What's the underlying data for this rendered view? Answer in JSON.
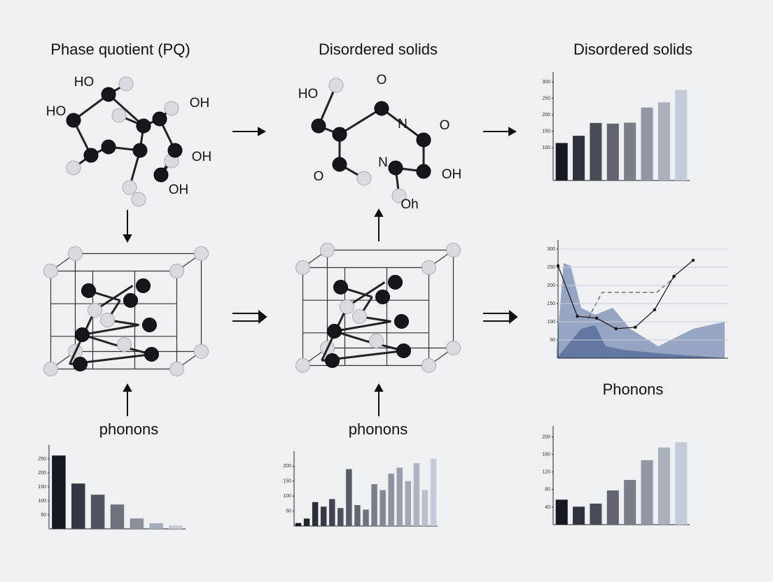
{
  "titles": [
    "Phase quotient (PQ)",
    "Disordered solids",
    "Disordered solids",
    "phonons",
    "phonons",
    "Phonons"
  ],
  "molecule_1_labels": [
    "HO",
    "HO",
    "OH",
    "OH",
    "OH"
  ],
  "molecule_2_labels": [
    "HO",
    "O",
    "N",
    "O",
    "O",
    "N",
    "OH",
    "Oh"
  ],
  "charts": [
    {
      "type": "bar",
      "ylim": [
        0,
        330
      ],
      "yticks": [
        100,
        150,
        200,
        250,
        300
      ],
      "values": [
        114,
        136,
        175,
        173,
        176,
        222,
        238,
        276
      ],
      "colors": [
        "#161922",
        "#c4cad6"
      ]
    },
    {
      "type": "line",
      "ylim": [
        0,
        325
      ],
      "yticks": [
        50,
        100,
        150,
        200,
        250,
        300
      ],
      "values": [
        254,
        115,
        110,
        81,
        85,
        133,
        225,
        269
      ],
      "color": "#111111"
    },
    {
      "type": "bar",
      "ylim": [
        0,
        225
      ],
      "yticks": [
        40,
        80,
        120,
        160,
        200
      ],
      "values": [
        57,
        41,
        48,
        78,
        102,
        147,
        176,
        188
      ],
      "colors": [
        "#161922",
        "#c4cad6"
      ]
    },
    {
      "type": "bar",
      "ylim": [
        0,
        300
      ],
      "yticks": [
        50,
        100,
        150,
        200,
        250
      ],
      "values": [
        262,
        162,
        122,
        87,
        37,
        20,
        12
      ],
      "colors": [
        "#161922",
        "#c4cad6"
      ]
    },
    {
      "type": "bar",
      "ylim": [
        0,
        250
      ],
      "yticks": [
        50,
        100,
        150,
        200
      ],
      "values": [
        10,
        25,
        80,
        65,
        90,
        60,
        190,
        70,
        55,
        140,
        120,
        175,
        195,
        150,
        210,
        120,
        225
      ],
      "colors": [
        "#161922",
        "#c4cad6"
      ]
    }
  ]
}
